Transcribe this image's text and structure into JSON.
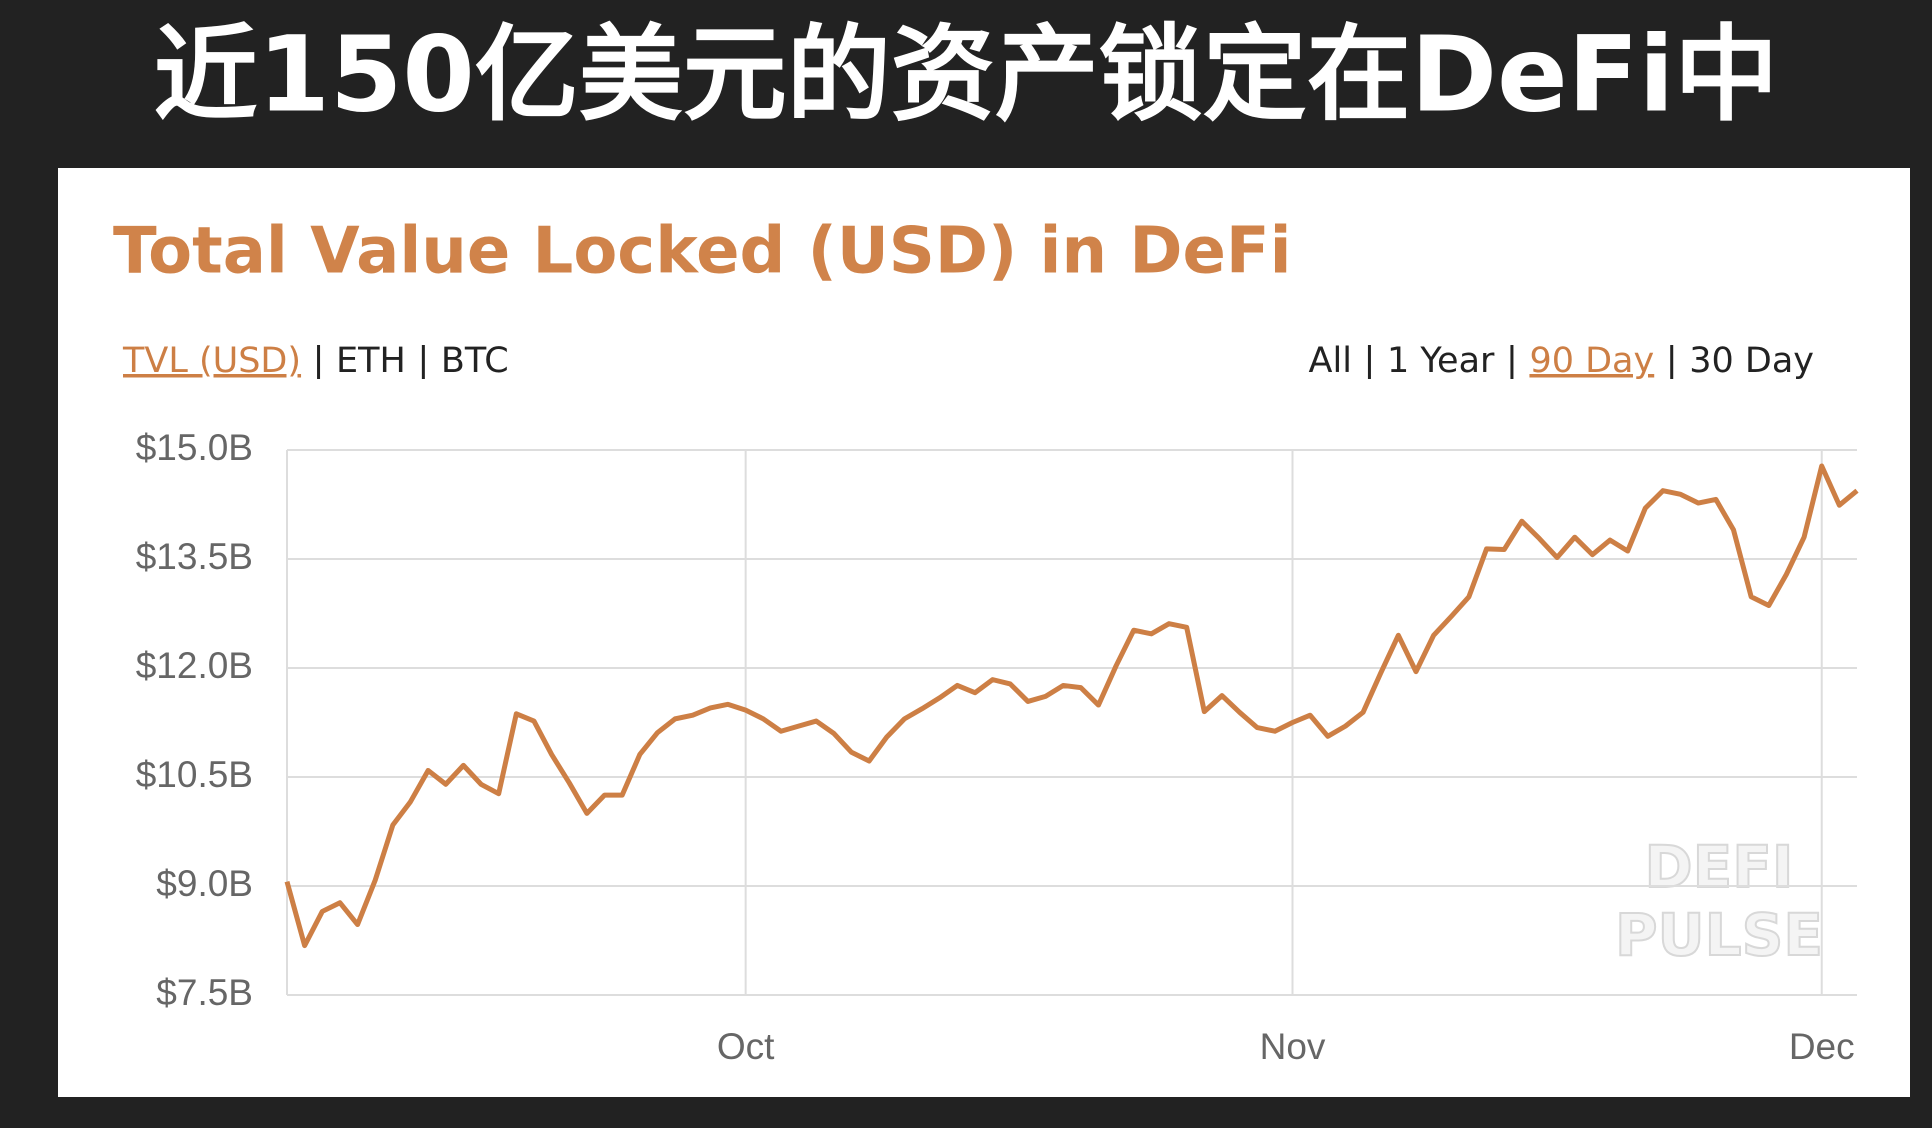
{
  "headline": "近150亿美元的资产锁定在DeFi中",
  "tabs_left": [
    "TVL (USD)",
    "ETH",
    "BTC"
  ],
  "active_left": 0,
  "tabs_right": [
    "All",
    "1 Year",
    "90 Day",
    "30 Day"
  ],
  "active_right": 2,
  "watermark": [
    "DEFI",
    "PULSE"
  ],
  "chart_data": {
    "type": "line",
    "title": "Total Value Locked (USD) in DeFi",
    "categories": [
      null,
      null,
      null,
      null,
      null,
      null,
      null,
      null,
      null,
      null,
      null,
      null,
      null,
      null,
      null,
      null,
      null,
      null,
      null,
      null,
      null,
      null,
      null,
      null,
      null,
      null,
      "Oct",
      null,
      null,
      null,
      null,
      null,
      null,
      null,
      null,
      null,
      null,
      null,
      null,
      null,
      null,
      null,
      null,
      null,
      null,
      null,
      null,
      null,
      null,
      null,
      null,
      null,
      null,
      null,
      null,
      null,
      null,
      "Nov",
      null,
      null,
      null,
      null,
      null,
      null,
      null,
      null,
      null,
      null,
      null,
      null,
      null,
      null,
      null,
      null,
      null,
      null,
      null,
      null,
      null,
      null,
      null,
      null,
      null,
      null,
      null,
      null,
      null,
      "Dec",
      null,
      null
    ],
    "series": [
      {
        "name": "TVL (USD)",
        "color": "#cd7f45",
        "values": [
          9.06,
          8.18,
          8.65,
          8.77,
          8.47,
          9.08,
          9.84,
          10.16,
          10.59,
          10.4,
          10.66,
          10.4,
          10.27,
          11.37,
          11.27,
          10.81,
          10.42,
          10.0,
          10.25,
          10.25,
          10.81,
          11.11,
          11.3,
          11.35,
          11.45,
          11.5,
          11.42,
          11.3,
          11.13,
          11.2,
          11.27,
          11.1,
          10.84,
          10.72,
          11.05,
          11.3,
          11.44,
          11.59,
          11.76,
          11.66,
          11.84,
          11.78,
          11.54,
          11.61,
          11.76,
          11.73,
          11.49,
          12.03,
          12.52,
          12.47,
          12.61,
          12.56,
          11.4,
          11.62,
          11.39,
          11.18,
          11.13,
          11.25,
          11.35,
          11.06,
          11.2,
          11.39,
          11.93,
          12.45,
          11.95,
          12.45,
          12.71,
          12.98,
          13.64,
          13.63,
          14.02,
          13.78,
          13.52,
          13.8,
          13.56,
          13.76,
          13.61,
          14.2,
          14.44,
          14.39,
          14.27,
          14.32,
          13.9,
          12.98,
          12.86,
          13.29,
          13.8,
          14.78,
          14.24,
          14.44
        ]
      }
    ],
    "ylim": [
      7.5,
      15
    ],
    "yticks": [
      {
        "value": 7.5,
        "label": "$7.5B"
      },
      {
        "value": 9,
        "label": "$9.0B"
      },
      {
        "value": 10.5,
        "label": "$10.5B"
      },
      {
        "value": 12,
        "label": "$12.0B"
      },
      {
        "value": 13.5,
        "label": "$13.5B"
      },
      {
        "value": 15,
        "label": "$15.0B"
      }
    ],
    "grid": true
  }
}
